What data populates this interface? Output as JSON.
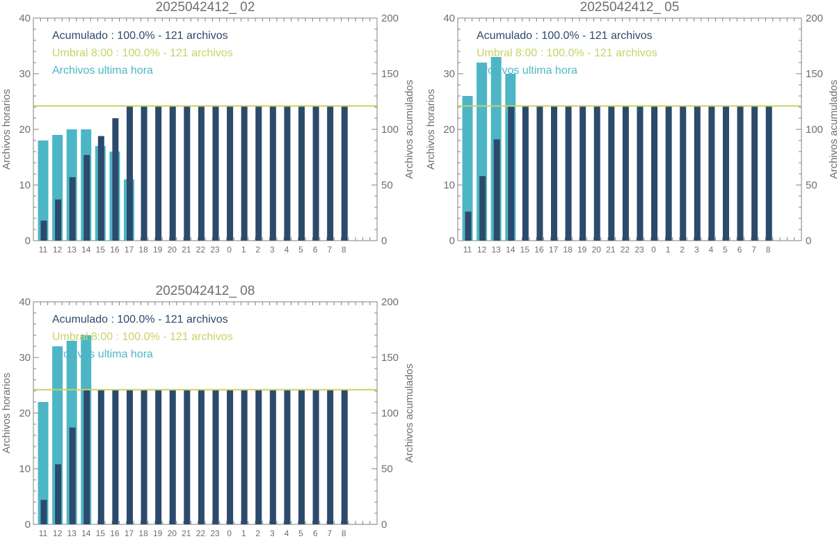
{
  "colors": {
    "hourly": "#4db6c6",
    "cumulative": "#2c4a6b",
    "threshold": "#c8d264",
    "axis": "#808080",
    "text": "#6e6e6e"
  },
  "x_tick_labels": [
    "11",
    "12",
    "13",
    "14",
    "15",
    "16",
    "17",
    "18",
    "19",
    "20",
    "21",
    "22",
    "23",
    "0",
    "1",
    "2",
    "3",
    "4",
    "5",
    "6",
    "7",
    "8"
  ],
  "chart_data": [
    {
      "type": "bar",
      "title": "2025042412_ 02",
      "ylabel": "Archivos horarios",
      "y2label": "Archivos acumulados",
      "ylim": [
        0,
        40
      ],
      "y2lim": [
        0,
        200
      ],
      "yticks": [
        "0",
        "10",
        "20",
        "30",
        "40"
      ],
      "y2ticks": [
        "0",
        "50",
        "100",
        "150",
        "200"
      ],
      "legend": [
        "Acumulado : 100.0% - 121 archivos",
        "Umbral 8:00 : 100.0% - 121 archivos",
        "Archivos ultima hora"
      ],
      "threshold": 121,
      "hourly": [
        18,
        19,
        20,
        20,
        17,
        16,
        11,
        0,
        0,
        0,
        0,
        0,
        0,
        0,
        0,
        0,
        0,
        0,
        0,
        0,
        0,
        0
      ],
      "cumulative": [
        18,
        37,
        57,
        77,
        94,
        110,
        121,
        121,
        121,
        121,
        121,
        121,
        121,
        121,
        121,
        121,
        121,
        121,
        121,
        121,
        121,
        121
      ]
    },
    {
      "type": "bar",
      "title": "2025042412_ 05",
      "ylabel": "Archivos horarios",
      "y2label": "Archivos acumulados",
      "ylim": [
        0,
        40
      ],
      "y2lim": [
        0,
        200
      ],
      "yticks": [
        "0",
        "10",
        "20",
        "30",
        "40"
      ],
      "y2ticks": [
        "0",
        "50",
        "100",
        "150",
        "200"
      ],
      "legend": [
        "Acumulado : 100.0% - 121 archivos",
        "Umbral 8:00 : 100.0% - 121 archivos",
        "Archivos ultima hora"
      ],
      "threshold": 121,
      "hourly": [
        26,
        32,
        33,
        30,
        0,
        0,
        0,
        0,
        0,
        0,
        0,
        0,
        0,
        0,
        0,
        0,
        0,
        0,
        0,
        0,
        0,
        0
      ],
      "cumulative": [
        26,
        58,
        91,
        121,
        121,
        121,
        121,
        121,
        121,
        121,
        121,
        121,
        121,
        121,
        121,
        121,
        121,
        121,
        121,
        121,
        121,
        121
      ]
    },
    {
      "type": "bar",
      "title": "2025042412_ 08",
      "ylabel": "Archivos horarios",
      "y2label": "Archivos acumulados",
      "ylim": [
        0,
        40
      ],
      "y2lim": [
        0,
        200
      ],
      "yticks": [
        "0",
        "10",
        "20",
        "30",
        "40"
      ],
      "y2ticks": [
        "0",
        "50",
        "100",
        "150",
        "200"
      ],
      "legend": [
        "Acumulado : 100.0% - 121 archivos",
        "Umbral 8:00 : 100.0% - 121 archivos",
        "Archivos ultima hora"
      ],
      "threshold": 121,
      "hourly": [
        22,
        32,
        33,
        34,
        0,
        0,
        0,
        0,
        0,
        0,
        0,
        0,
        0,
        0,
        0,
        0,
        0,
        0,
        0,
        0,
        0,
        0
      ],
      "cumulative": [
        22,
        54,
        87,
        121,
        121,
        121,
        121,
        121,
        121,
        121,
        121,
        121,
        121,
        121,
        121,
        121,
        121,
        121,
        121,
        121,
        121,
        121
      ]
    }
  ]
}
